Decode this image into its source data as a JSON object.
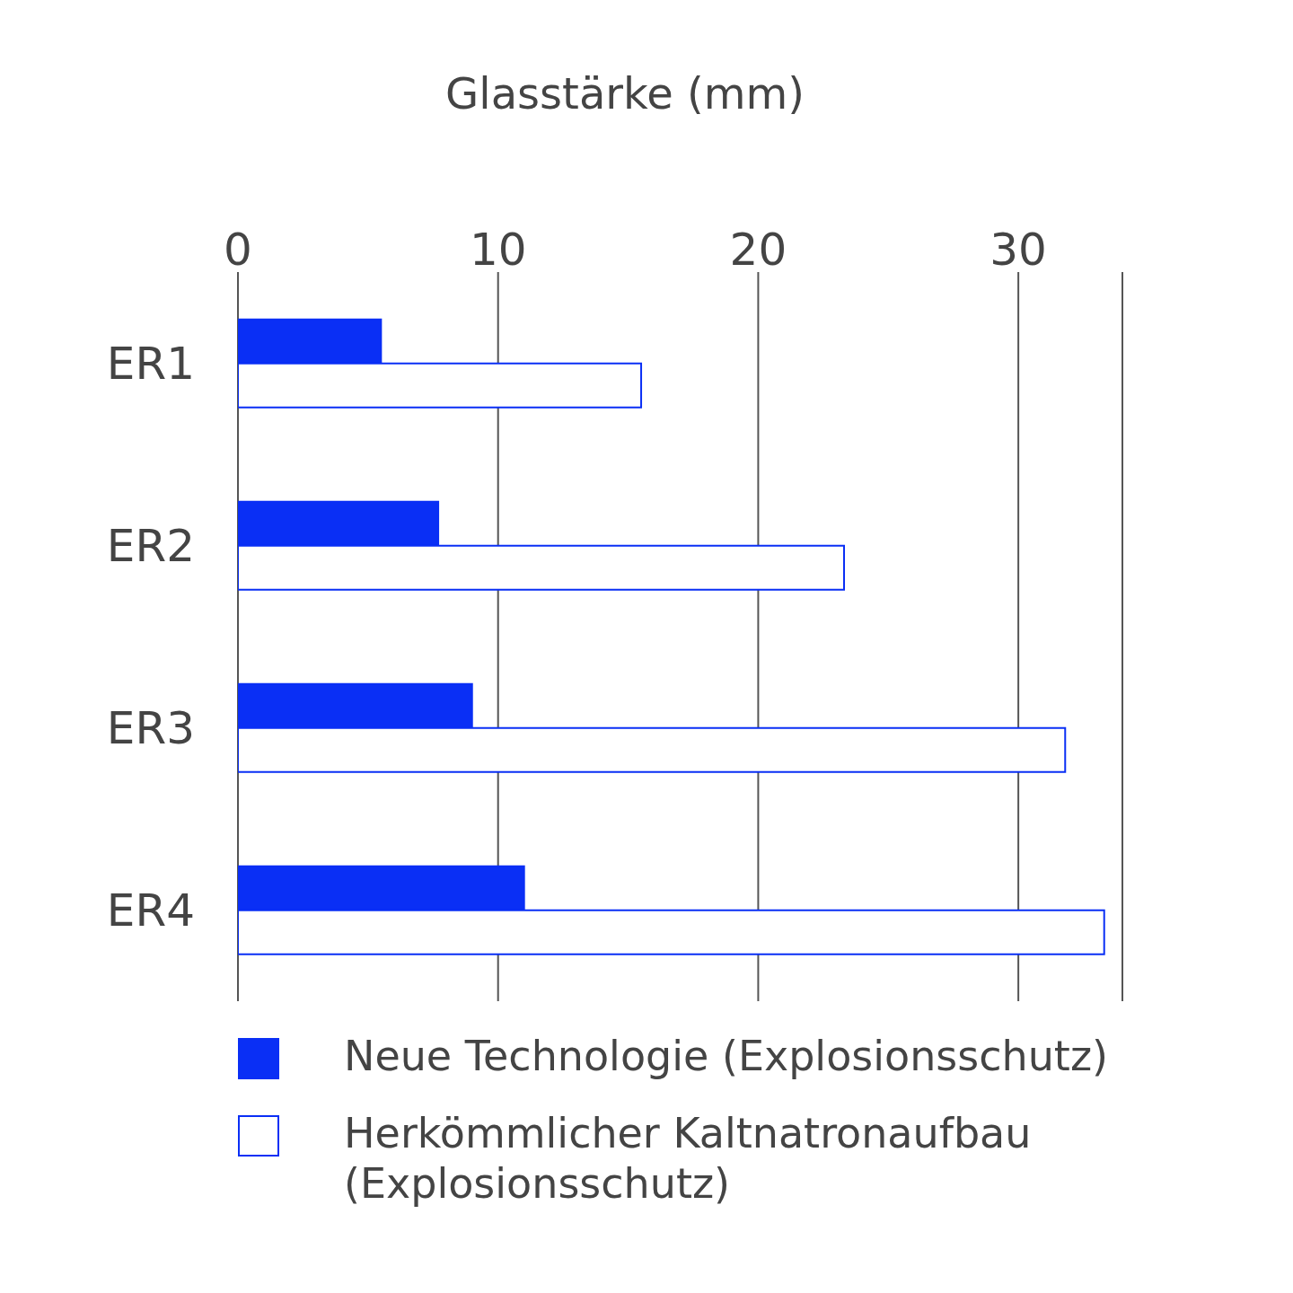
{
  "chart_data": {
    "type": "bar",
    "orientation": "horizontal",
    "xlabel": "Glasstärke (mm)",
    "categories": [
      "ER1",
      "ER2",
      "ER3",
      "ER4"
    ],
    "series": [
      {
        "name": "Neue Technologie (Explosionsschutz)",
        "color": "#0a2ff5",
        "values": [
          5.5,
          7.7,
          9,
          11
        ]
      },
      {
        "name": "Herkömmlicher Kaltnatronaufbau (Explosionsschutz)",
        "color": "#ffffff",
        "values": [
          15.5,
          23.3,
          31.8,
          33.3
        ]
      }
    ],
    "xlim": [
      0,
      34
    ],
    "xticks": [
      0,
      10,
      20,
      30
    ],
    "grid": "x",
    "legend": "bottom"
  }
}
